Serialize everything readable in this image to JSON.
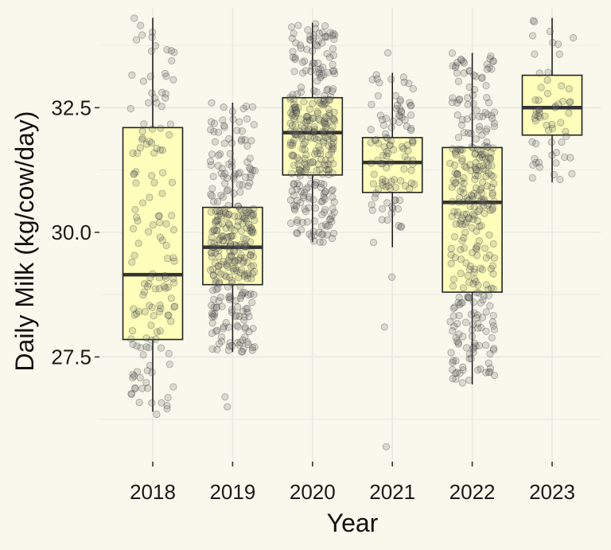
{
  "chart_data": {
    "type": "box",
    "title": "",
    "xlabel": "Year",
    "ylabel": "Daily Milk (kg/cow/day)",
    "ylim": [
      25.4,
      34.5
    ],
    "yticks": [
      27.5,
      30.0,
      32.5
    ],
    "ytick_labels": [
      "27.5",
      "30.0",
      "32.5"
    ],
    "grid": true,
    "categories": [
      "2018",
      "2019",
      "2020",
      "2021",
      "2022",
      "2023"
    ],
    "boxes": [
      {
        "category": "2018",
        "q1": 27.85,
        "median": 29.15,
        "q3": 32.1,
        "whisker_low": 26.4,
        "whisker_high": 34.3,
        "n_points": 150
      },
      {
        "category": "2019",
        "q1": 28.95,
        "median": 29.7,
        "q3": 30.5,
        "whisker_low": 27.6,
        "whisker_high": 32.6,
        "n_points": 320
      },
      {
        "category": "2020",
        "q1": 31.15,
        "median": 32.0,
        "q3": 32.7,
        "whisker_low": 29.8,
        "whisker_high": 34.2,
        "n_points": 320
      },
      {
        "category": "2021",
        "q1": 30.8,
        "median": 31.4,
        "q3": 31.9,
        "whisker_low": 29.7,
        "whisker_high": 33.2,
        "n_points": 110
      },
      {
        "category": "2022",
        "q1": 28.8,
        "median": 30.6,
        "q3": 31.7,
        "whisker_low": 26.95,
        "whisker_high": 33.6,
        "n_points": 330
      },
      {
        "category": "2023",
        "q1": 31.95,
        "median": 32.5,
        "q3": 33.15,
        "whisker_low": 31.0,
        "whisker_high": 34.3,
        "n_points": 60
      }
    ],
    "outliers": [
      {
        "category": "2018",
        "value": 26.35
      },
      {
        "category": "2019",
        "value": 26.5
      },
      {
        "category": "2019",
        "value": 26.7
      },
      {
        "category": "2021",
        "value": 25.7
      },
      {
        "category": "2021",
        "value": 28.1
      },
      {
        "category": "2021",
        "value": 29.1
      },
      {
        "category": "2021",
        "value": 33.6
      }
    ],
    "colors": {
      "background": "#f8f8ec",
      "box_fill": "#ffffbb",
      "box_stroke": "#222222",
      "grid": "#e9e9e4",
      "points": "#555555"
    }
  }
}
